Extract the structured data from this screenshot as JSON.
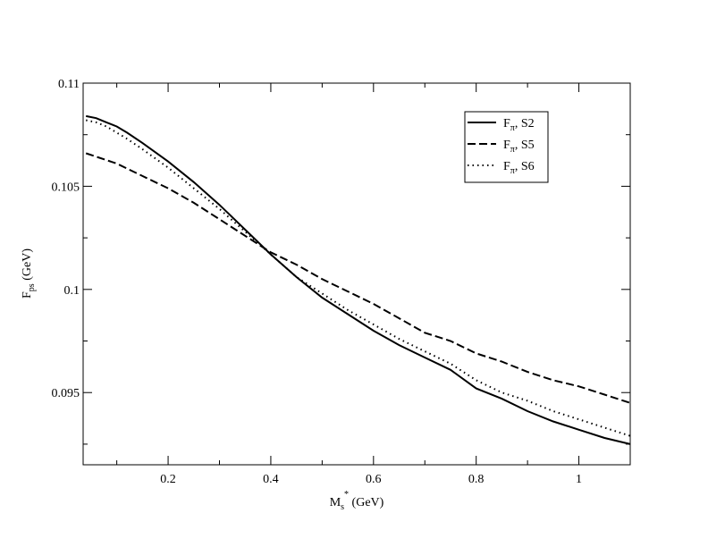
{
  "chart_data": {
    "type": "line",
    "xlabel": {
      "main": "M",
      "sub": "s",
      "sup": "*",
      "unit": " (GeV)"
    },
    "ylabel": {
      "main": "F",
      "sub": "ps",
      "unit": " (GeV)"
    },
    "xlim": [
      0.0345,
      1.1
    ],
    "ylim": [
      0.0915,
      0.11
    ],
    "x_major_ticks": [
      0.2,
      0.4,
      0.6,
      0.8,
      1
    ],
    "x_tick_labels": [
      "0.2",
      "0.4",
      "0.6",
      "0.8",
      "1"
    ],
    "x_minor_ticks": [
      0.1,
      0.3,
      0.5,
      0.7,
      0.9,
      1.1
    ],
    "y_major_ticks": [
      0.095,
      0.1,
      0.105,
      0.11
    ],
    "y_tick_labels": [
      "0.095",
      "0.1",
      "0.105",
      "0.11"
    ],
    "y_minor_ticks": [
      0.0925,
      0.0975,
      0.1025,
      0.1075
    ],
    "grid": false,
    "legend_position": "top-right",
    "series": [
      {
        "name": "Fπ, S2",
        "legend": {
          "main": "F",
          "sub": "π",
          "rest": ", S2"
        },
        "style": "solid",
        "x": [
          0.04,
          0.06,
          0.08,
          0.1,
          0.12,
          0.15,
          0.2,
          0.25,
          0.3,
          0.35,
          0.4,
          0.45,
          0.5,
          0.55,
          0.6,
          0.65,
          0.7,
          0.75,
          0.8,
          0.85,
          0.9,
          0.95,
          1.0,
          1.05,
          1.1
        ],
        "y": [
          0.1084,
          0.1083,
          0.1081,
          0.1079,
          0.1076,
          0.1071,
          0.1062,
          0.1052,
          0.1041,
          0.1029,
          0.1017,
          0.1006,
          0.0996,
          0.0988,
          0.098,
          0.0973,
          0.0967,
          0.0961,
          0.0952,
          0.0947,
          0.0941,
          0.0936,
          0.0932,
          0.0928,
          0.0925
        ]
      },
      {
        "name": "Fπ, S5",
        "legend": {
          "main": "F",
          "sub": "π",
          "rest": ", S5"
        },
        "style": "dashed",
        "x": [
          0.04,
          0.1,
          0.15,
          0.2,
          0.25,
          0.3,
          0.35,
          0.4,
          0.45,
          0.5,
          0.55,
          0.6,
          0.65,
          0.7,
          0.75,
          0.8,
          0.85,
          0.9,
          0.95,
          1.0,
          1.05,
          1.1
        ],
        "y": [
          0.1066,
          0.1061,
          0.1055,
          0.1049,
          0.1042,
          0.1034,
          0.1026,
          0.1018,
          0.1012,
          0.1005,
          0.0999,
          0.0993,
          0.0986,
          0.0979,
          0.0975,
          0.0969,
          0.0965,
          0.096,
          0.0956,
          0.0953,
          0.0949,
          0.0945
        ]
      },
      {
        "name": "Fπ, S6",
        "legend": {
          "main": "F",
          "sub": "π",
          "rest": ", S6"
        },
        "style": "dotted",
        "x": [
          0.04,
          0.06,
          0.08,
          0.1,
          0.12,
          0.15,
          0.2,
          0.25,
          0.3,
          0.35,
          0.4,
          0.45,
          0.5,
          0.55,
          0.6,
          0.65,
          0.7,
          0.75,
          0.8,
          0.85,
          0.9,
          0.95,
          1.0,
          1.05,
          1.1
        ],
        "y": [
          0.1082,
          0.1081,
          0.1079,
          0.1076,
          0.1073,
          0.1068,
          0.1059,
          0.1049,
          0.1039,
          0.1028,
          0.1017,
          0.1006,
          0.0998,
          0.099,
          0.0983,
          0.0976,
          0.097,
          0.0964,
          0.0956,
          0.095,
          0.0946,
          0.0941,
          0.0937,
          0.0933,
          0.0929
        ]
      }
    ]
  }
}
